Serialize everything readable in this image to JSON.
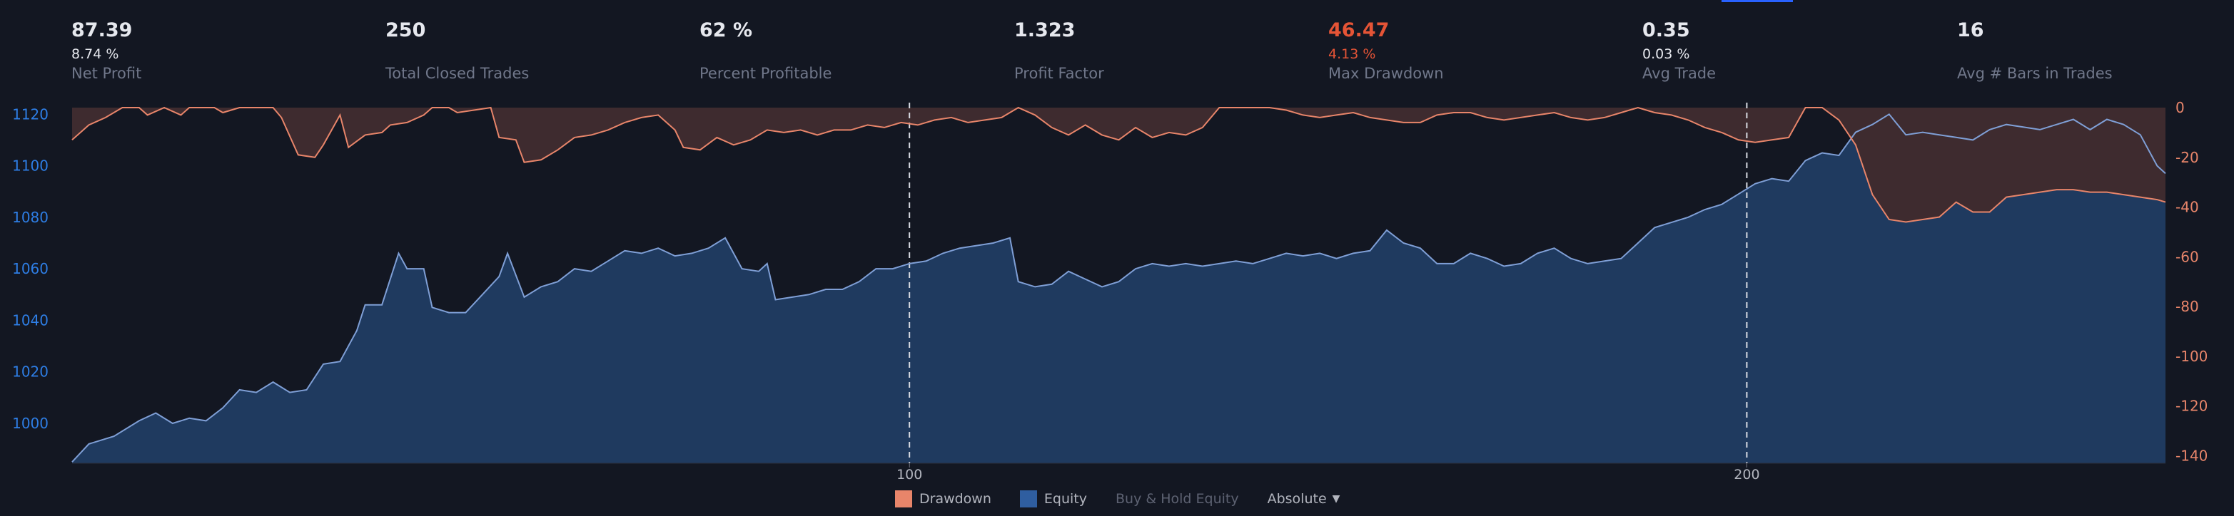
{
  "stats": [
    {
      "value": "87.39",
      "sub": "8.74 %",
      "label": "Net Profit",
      "highlight": false
    },
    {
      "value": "250",
      "sub": "",
      "label": "Total Closed Trades",
      "highlight": false
    },
    {
      "value": "62 %",
      "sub": "",
      "label": "Percent Profitable",
      "highlight": false
    },
    {
      "value": "1.323",
      "sub": "",
      "label": "Profit Factor",
      "highlight": false
    },
    {
      "value": "46.47",
      "sub": "4.13 %",
      "label": "Max Drawdown",
      "highlight": true
    },
    {
      "value": "0.35",
      "sub": "0.03 %",
      "label": "Avg Trade",
      "highlight": false
    },
    {
      "value": "16",
      "sub": "",
      "label": "Avg # Bars in Trades",
      "highlight": false
    }
  ],
  "legend": {
    "drawdown": "Drawdown",
    "equity": "Equity",
    "buy_hold": "Buy & Hold Equity",
    "mode": "Absolute"
  },
  "colors": {
    "equity_fill": "#1f3a5f",
    "equity_line": "#7f9fd6",
    "drawdown_fill": "#3e2b2f",
    "drawdown_line": "#e8856a",
    "left_axis": "#2e7ee5",
    "right_axis": "#e8856a",
    "accent": "#2962ff",
    "background": "#131722"
  },
  "chart_data": {
    "type": "area",
    "x_tick_labels": [
      "100",
      "200"
    ],
    "x_ticks": [
      100,
      200
    ],
    "x_range": [
      0,
      250
    ],
    "left_axis": {
      "ticks": [
        1000,
        1020,
        1040,
        1060,
        1080,
        1100,
        1120
      ],
      "range": [
        984.5,
        1124.5
      ]
    },
    "right_axis": {
      "ticks": [
        0,
        -20,
        -40,
        -60,
        -80,
        -100,
        -120,
        -140
      ],
      "range": [
        -143,
        2
      ]
    },
    "vertical_markers": [
      100,
      200
    ],
    "series": [
      {
        "name": "Equity",
        "axis": "left",
        "points": [
          [
            0,
            985
          ],
          [
            2,
            992
          ],
          [
            5,
            995
          ],
          [
            8,
            1001
          ],
          [
            10,
            1004
          ],
          [
            12,
            1000
          ],
          [
            14,
            1002
          ],
          [
            16,
            1001
          ],
          [
            18,
            1006
          ],
          [
            20,
            1013
          ],
          [
            22,
            1012
          ],
          [
            24,
            1016
          ],
          [
            26,
            1012
          ],
          [
            28,
            1013
          ],
          [
            30,
            1023
          ],
          [
            32,
            1024
          ],
          [
            34,
            1036
          ],
          [
            35,
            1046
          ],
          [
            37,
            1046
          ],
          [
            39,
            1066
          ],
          [
            40,
            1060
          ],
          [
            42,
            1060
          ],
          [
            43,
            1045
          ],
          [
            45,
            1043
          ],
          [
            47,
            1043
          ],
          [
            49,
            1050
          ],
          [
            51,
            1057
          ],
          [
            52,
            1066
          ],
          [
            54,
            1049
          ],
          [
            56,
            1053
          ],
          [
            58,
            1055
          ],
          [
            60,
            1060
          ],
          [
            62,
            1059
          ],
          [
            64,
            1063
          ],
          [
            66,
            1067
          ],
          [
            68,
            1066
          ],
          [
            70,
            1068
          ],
          [
            72,
            1065
          ],
          [
            74,
            1066
          ],
          [
            76,
            1068
          ],
          [
            78,
            1072
          ],
          [
            80,
            1060
          ],
          [
            82,
            1059
          ],
          [
            83,
            1062
          ],
          [
            84,
            1048
          ],
          [
            86,
            1049
          ],
          [
            88,
            1050
          ],
          [
            90,
            1052
          ],
          [
            92,
            1052
          ],
          [
            94,
            1055
          ],
          [
            96,
            1060
          ],
          [
            98,
            1060
          ],
          [
            100,
            1062
          ],
          [
            102,
            1063
          ],
          [
            104,
            1066
          ],
          [
            106,
            1068
          ],
          [
            108,
            1069
          ],
          [
            110,
            1070
          ],
          [
            112,
            1072
          ],
          [
            113,
            1055
          ],
          [
            115,
            1053
          ],
          [
            117,
            1054
          ],
          [
            119,
            1059
          ],
          [
            121,
            1056
          ],
          [
            123,
            1053
          ],
          [
            125,
            1055
          ],
          [
            127,
            1060
          ],
          [
            129,
            1062
          ],
          [
            131,
            1061
          ],
          [
            133,
            1062
          ],
          [
            135,
            1061
          ],
          [
            137,
            1062
          ],
          [
            139,
            1063
          ],
          [
            141,
            1062
          ],
          [
            143,
            1064
          ],
          [
            145,
            1066
          ],
          [
            147,
            1065
          ],
          [
            149,
            1066
          ],
          [
            151,
            1064
          ],
          [
            153,
            1066
          ],
          [
            155,
            1067
          ],
          [
            157,
            1075
          ],
          [
            159,
            1070
          ],
          [
            161,
            1068
          ],
          [
            163,
            1062
          ],
          [
            165,
            1062
          ],
          [
            167,
            1066
          ],
          [
            169,
            1064
          ],
          [
            171,
            1061
          ],
          [
            173,
            1062
          ],
          [
            175,
            1066
          ],
          [
            177,
            1068
          ],
          [
            179,
            1064
          ],
          [
            181,
            1062
          ],
          [
            183,
            1063
          ],
          [
            185,
            1064
          ],
          [
            187,
            1070
          ],
          [
            189,
            1076
          ],
          [
            191,
            1078
          ],
          [
            193,
            1080
          ],
          [
            195,
            1083
          ],
          [
            197,
            1085
          ],
          [
            199,
            1089
          ],
          [
            201,
            1093
          ],
          [
            203,
            1095
          ],
          [
            205,
            1094
          ],
          [
            207,
            1102
          ],
          [
            209,
            1105
          ],
          [
            211,
            1104
          ],
          [
            213,
            1113
          ],
          [
            215,
            1116
          ],
          [
            217,
            1120
          ],
          [
            219,
            1112
          ],
          [
            221,
            1113
          ],
          [
            223,
            1112
          ],
          [
            225,
            1111
          ],
          [
            227,
            1110
          ],
          [
            229,
            1114
          ],
          [
            231,
            1116
          ],
          [
            233,
            1115
          ],
          [
            235,
            1114
          ],
          [
            237,
            1116
          ],
          [
            239,
            1118
          ],
          [
            241,
            1114
          ],
          [
            243,
            1118
          ],
          [
            245,
            1116
          ],
          [
            247,
            1112
          ],
          [
            249,
            1100
          ],
          [
            250,
            1097
          ]
        ]
      },
      {
        "name": "Drawdown",
        "axis": "right",
        "points": [
          [
            0,
            -13
          ],
          [
            2,
            -7
          ],
          [
            4,
            -4
          ],
          [
            6,
            0
          ],
          [
            8,
            0
          ],
          [
            9,
            -3
          ],
          [
            11,
            0
          ],
          [
            13,
            -3
          ],
          [
            14,
            0
          ],
          [
            17,
            0
          ],
          [
            18,
            -2
          ],
          [
            19,
            -1
          ],
          [
            20,
            0
          ],
          [
            22,
            0
          ],
          [
            24,
            0
          ],
          [
            25,
            -4
          ],
          [
            27,
            -19
          ],
          [
            29,
            -20
          ],
          [
            30,
            -15
          ],
          [
            32,
            -3
          ],
          [
            33,
            -16
          ],
          [
            35,
            -11
          ],
          [
            37,
            -10
          ],
          [
            38,
            -7
          ],
          [
            40,
            -6
          ],
          [
            42,
            -3
          ],
          [
            43,
            0
          ],
          [
            45,
            0
          ],
          [
            46,
            -2
          ],
          [
            48,
            -1
          ],
          [
            50,
            0
          ],
          [
            51,
            -12
          ],
          [
            53,
            -13
          ],
          [
            54,
            -22
          ],
          [
            56,
            -21
          ],
          [
            58,
            -17
          ],
          [
            60,
            -12
          ],
          [
            62,
            -11
          ],
          [
            64,
            -9
          ],
          [
            66,
            -6
          ],
          [
            68,
            -4
          ],
          [
            70,
            -3
          ],
          [
            72,
            -9
          ],
          [
            73,
            -16
          ],
          [
            75,
            -17
          ],
          [
            77,
            -12
          ],
          [
            79,
            -15
          ],
          [
            81,
            -13
          ],
          [
            83,
            -9
          ],
          [
            85,
            -10
          ],
          [
            87,
            -9
          ],
          [
            89,
            -11
          ],
          [
            91,
            -9
          ],
          [
            93,
            -9
          ],
          [
            95,
            -7
          ],
          [
            97,
            -8
          ],
          [
            99,
            -6
          ],
          [
            101,
            -7
          ],
          [
            103,
            -5
          ],
          [
            105,
            -4
          ],
          [
            107,
            -6
          ],
          [
            109,
            -5
          ],
          [
            111,
            -4
          ],
          [
            113,
            0
          ],
          [
            115,
            -3
          ],
          [
            117,
            -8
          ],
          [
            119,
            -11
          ],
          [
            121,
            -7
          ],
          [
            123,
            -11
          ],
          [
            125,
            -13
          ],
          [
            127,
            -8
          ],
          [
            129,
            -12
          ],
          [
            131,
            -10
          ],
          [
            133,
            -11
          ],
          [
            135,
            -8
          ],
          [
            137,
            0
          ],
          [
            139,
            0
          ],
          [
            141,
            0
          ],
          [
            143,
            0
          ],
          [
            145,
            -1
          ],
          [
            147,
            -3
          ],
          [
            149,
            -4
          ],
          [
            151,
            -3
          ],
          [
            153,
            -2
          ],
          [
            155,
            -4
          ],
          [
            157,
            -5
          ],
          [
            159,
            -6
          ],
          [
            161,
            -6
          ],
          [
            163,
            -3
          ],
          [
            165,
            -2
          ],
          [
            167,
            -2
          ],
          [
            169,
            -4
          ],
          [
            171,
            -5
          ],
          [
            173,
            -4
          ],
          [
            175,
            -3
          ],
          [
            177,
            -2
          ],
          [
            179,
            -4
          ],
          [
            181,
            -5
          ],
          [
            183,
            -4
          ],
          [
            185,
            -2
          ],
          [
            187,
            0
          ],
          [
            189,
            -2
          ],
          [
            191,
            -3
          ],
          [
            193,
            -5
          ],
          [
            195,
            -8
          ],
          [
            197,
            -10
          ],
          [
            199,
            -13
          ],
          [
            201,
            -14
          ],
          [
            203,
            -13
          ],
          [
            205,
            -12
          ],
          [
            207,
            0
          ],
          [
            209,
            0
          ],
          [
            211,
            -5
          ],
          [
            213,
            -15
          ],
          [
            215,
            -35
          ],
          [
            217,
            -45
          ],
          [
            219,
            -46
          ],
          [
            221,
            -45
          ],
          [
            223,
            -44
          ],
          [
            225,
            -38
          ],
          [
            227,
            -42
          ],
          [
            229,
            -42
          ],
          [
            231,
            -36
          ],
          [
            233,
            -35
          ],
          [
            235,
            -34
          ],
          [
            237,
            -33
          ],
          [
            239,
            -33
          ],
          [
            241,
            -34
          ],
          [
            243,
            -34
          ],
          [
            245,
            -35
          ],
          [
            247,
            -36
          ],
          [
            249,
            -37
          ],
          [
            250,
            -38
          ]
        ]
      }
    ]
  }
}
